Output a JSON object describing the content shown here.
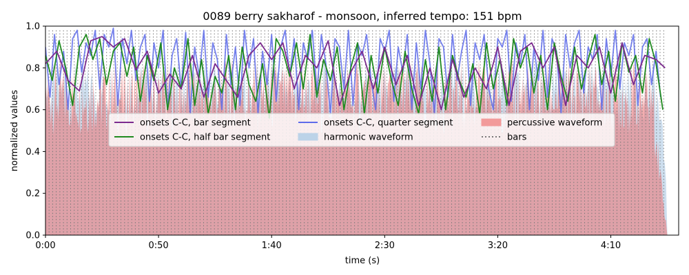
{
  "chart_data": {
    "type": "line",
    "title": "0089 berry sakharof - monsoon, inferred tempo: 151 bpm",
    "xlabel": "time (s)",
    "ylabel": "normalized values",
    "xlim": [
      0,
      280
    ],
    "ylim": [
      0,
      1
    ],
    "x_ticks": [
      {
        "value": 0,
        "label": "0:00"
      },
      {
        "value": 50,
        "label": "0:50"
      },
      {
        "value": 100,
        "label": "1:40"
      },
      {
        "value": 150,
        "label": "2:30"
      },
      {
        "value": 200,
        "label": "3:20"
      },
      {
        "value": 250,
        "label": "4:10"
      }
    ],
    "y_ticks": [
      0.0,
      0.2,
      0.4,
      0.6,
      0.8,
      1.0
    ],
    "y_tick_labels": [
      "0.0",
      "0.2",
      "0.4",
      "0.6",
      "0.8",
      "1.0"
    ],
    "grid": false,
    "tempo_bpm": 151,
    "bar_start": 0,
    "bar_end": 274,
    "legend": {
      "placement": "center",
      "entries": [
        {
          "label": "onsets C-C, bar segment",
          "kind": "line",
          "color": "#7b2a8e"
        },
        {
          "label": "onsets C-C, half bar segment",
          "kind": "line",
          "color": "#1f8a1f"
        },
        {
          "label": "onsets C-C, quarter segment",
          "kind": "line",
          "color": "#5d6bea"
        },
        {
          "label": "harmonic waveform",
          "kind": "patch",
          "color": "#bcd3e8"
        },
        {
          "label": "percussive waveform",
          "kind": "patch",
          "color": "#f29a9a"
        },
        {
          "label": "bars",
          "kind": "dotted",
          "color": "#777777"
        }
      ]
    },
    "series": [
      {
        "name": "onsets C-C, bar segment",
        "color": "#7b2a8e",
        "x": [
          0,
          5,
          10,
          15,
          20,
          25,
          30,
          35,
          40,
          45,
          50,
          55,
          60,
          65,
          70,
          75,
          80,
          85,
          90,
          95,
          100,
          105,
          110,
          115,
          120,
          125,
          130,
          135,
          140,
          145,
          150,
          155,
          160,
          165,
          170,
          175,
          180,
          185,
          190,
          195,
          200,
          205,
          210,
          215,
          220,
          225,
          230,
          235,
          240,
          245,
          250,
          255,
          260,
          265,
          270,
          274
        ],
        "values": [
          0.82,
          0.88,
          0.74,
          0.69,
          0.93,
          0.95,
          0.9,
          0.94,
          0.79,
          0.88,
          0.68,
          0.77,
          0.7,
          0.86,
          0.66,
          0.82,
          0.74,
          0.66,
          0.86,
          0.92,
          0.84,
          0.92,
          0.7,
          0.86,
          0.8,
          0.93,
          0.62,
          0.78,
          0.88,
          0.7,
          0.9,
          0.72,
          0.86,
          0.62,
          0.8,
          0.6,
          0.84,
          0.66,
          0.8,
          0.7,
          0.9,
          0.62,
          0.88,
          0.92,
          0.8,
          0.9,
          0.62,
          0.86,
          0.8,
          0.9,
          0.68,
          0.92,
          0.72,
          0.86,
          0.84,
          0.8
        ]
      },
      {
        "name": "onsets C-C, half bar segment",
        "color": "#1f8a1f",
        "x": [
          0,
          3,
          6,
          9,
          12,
          15,
          18,
          21,
          24,
          27,
          30,
          33,
          36,
          39,
          42,
          45,
          48,
          51,
          54,
          57,
          60,
          63,
          66,
          69,
          72,
          75,
          78,
          81,
          84,
          87,
          90,
          93,
          96,
          99,
          102,
          105,
          108,
          111,
          114,
          117,
          120,
          123,
          126,
          129,
          132,
          135,
          138,
          141,
          144,
          147,
          150,
          153,
          156,
          159,
          162,
          165,
          168,
          171,
          174,
          177,
          180,
          183,
          186,
          189,
          192,
          195,
          198,
          201,
          204,
          207,
          210,
          213,
          216,
          219,
          222,
          225,
          228,
          231,
          234,
          237,
          240,
          243,
          246,
          249,
          252,
          255,
          258,
          261,
          264,
          267,
          270,
          273
        ],
        "values": [
          0.86,
          0.74,
          0.93,
          0.8,
          0.62,
          0.9,
          0.96,
          0.84,
          0.94,
          0.72,
          0.88,
          0.92,
          0.76,
          0.9,
          0.64,
          0.86,
          0.74,
          0.92,
          0.6,
          0.8,
          0.7,
          0.94,
          0.62,
          0.84,
          0.58,
          0.76,
          0.68,
          0.86,
          0.6,
          0.9,
          0.72,
          0.64,
          0.82,
          0.56,
          0.94,
          0.88,
          0.76,
          0.92,
          0.7,
          0.96,
          0.66,
          0.84,
          0.74,
          0.9,
          0.6,
          0.8,
          0.92,
          0.58,
          0.86,
          0.68,
          0.9,
          0.74,
          0.62,
          0.88,
          0.7,
          0.58,
          0.84,
          0.64,
          0.9,
          0.6,
          0.86,
          0.74,
          0.66,
          0.82,
          0.58,
          0.92,
          0.7,
          0.84,
          0.62,
          0.94,
          0.8,
          0.9,
          0.68,
          0.86,
          0.6,
          0.92,
          0.76,
          0.64,
          0.9,
          0.7,
          0.84,
          0.96,
          0.72,
          0.88,
          0.64,
          0.92,
          0.78,
          0.86,
          0.68,
          0.94,
          0.82,
          0.6
        ]
      },
      {
        "name": "onsets C-C, quarter segment",
        "color": "#5d6bea",
        "x": [
          0,
          2,
          4,
          6,
          8,
          10,
          12,
          14,
          16,
          18,
          20,
          22,
          24,
          26,
          28,
          30,
          32,
          34,
          36,
          38,
          40,
          42,
          44,
          46,
          48,
          50,
          52,
          54,
          56,
          58,
          60,
          62,
          64,
          66,
          68,
          70,
          72,
          74,
          76,
          78,
          80,
          82,
          84,
          86,
          88,
          90,
          92,
          94,
          96,
          98,
          100,
          102,
          104,
          106,
          108,
          110,
          112,
          114,
          116,
          118,
          120,
          122,
          124,
          126,
          128,
          130,
          132,
          134,
          136,
          138,
          140,
          142,
          144,
          146,
          148,
          150,
          152,
          154,
          156,
          158,
          160,
          162,
          164,
          166,
          168,
          170,
          172,
          174,
          176,
          178,
          180,
          182,
          184,
          186,
          188,
          190,
          192,
          194,
          196,
          198,
          200,
          202,
          204,
          206,
          208,
          210,
          212,
          214,
          216,
          218,
          220,
          222,
          224,
          226,
          228,
          230,
          232,
          234,
          236,
          238,
          240,
          242,
          244,
          246,
          248,
          250,
          252,
          254,
          256,
          258,
          260,
          262,
          264,
          266,
          268,
          270,
          272
        ],
        "values": [
          0.9,
          0.66,
          0.96,
          0.72,
          0.88,
          0.6,
          0.94,
          0.98,
          0.78,
          0.92,
          0.86,
          0.98,
          0.7,
          0.96,
          0.9,
          0.99,
          0.62,
          0.94,
          0.82,
          0.98,
          0.74,
          0.9,
          0.96,
          0.64,
          0.92,
          0.8,
          0.98,
          0.6,
          0.86,
          0.94,
          0.7,
          0.97,
          0.58,
          0.9,
          0.76,
          0.98,
          0.66,
          0.92,
          0.84,
          0.6,
          0.96,
          0.72,
          0.9,
          0.62,
          0.98,
          0.8,
          0.94,
          0.58,
          0.88,
          0.72,
          0.96,
          0.64,
          0.9,
          0.98,
          0.76,
          0.94,
          0.6,
          0.92,
          0.84,
          0.98,
          0.68,
          0.96,
          0.82,
          0.58,
          0.94,
          0.9,
          0.7,
          0.98,
          0.62,
          0.92,
          0.86,
          0.96,
          0.74,
          0.6,
          0.94,
          0.88,
          0.98,
          0.64,
          0.9,
          0.78,
          0.96,
          0.6,
          0.92,
          0.7,
          0.98,
          0.82,
          0.58,
          0.94,
          0.9,
          0.66,
          0.96,
          0.74,
          0.88,
          0.98,
          0.62,
          0.92,
          0.84,
          0.96,
          0.7,
          0.6,
          0.94,
          0.9,
          0.98,
          0.64,
          0.92,
          0.82,
          0.96,
          0.6,
          0.9,
          0.74,
          0.98,
          0.66,
          0.94,
          0.88,
          0.58,
          0.96,
          0.8,
          0.92,
          0.98,
          0.68,
          0.9,
          0.84,
          0.96,
          0.6,
          0.94,
          0.76,
          0.98,
          0.7,
          0.92,
          0.86,
          0.96,
          0.62,
          0.9,
          0.94,
          0.72,
          0.88,
          0.66
        ]
      }
    ]
  }
}
